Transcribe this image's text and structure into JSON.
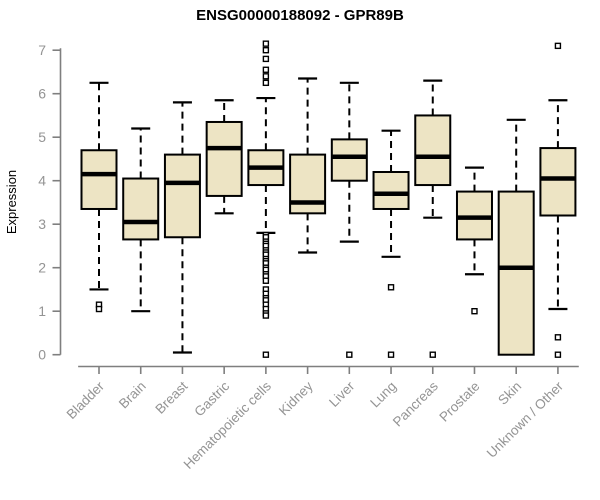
{
  "chart_data": {
    "type": "box",
    "title": "ENSG00000188092 - GPR89B",
    "ylabel": "Expression",
    "xlabel": "",
    "ylim": [
      0,
      7
    ],
    "yticks": [
      0,
      1,
      2,
      3,
      4,
      5,
      6,
      7
    ],
    "grid": false,
    "legend": "none",
    "categories": [
      "Bladder",
      "Brain",
      "Breast",
      "Gastric",
      "Hematopoietic cells",
      "Kidney",
      "Liver",
      "Lung",
      "Pancreas",
      "Prostate",
      "Skin",
      "Unknown / Other"
    ],
    "boxes": [
      {
        "category": "Bladder",
        "whisker_low": 1.5,
        "q1": 3.35,
        "median": 4.15,
        "q3": 4.7,
        "whisker_high": 6.25,
        "outliers": [
          1.15,
          1.05
        ]
      },
      {
        "category": "Brain",
        "whisker_low": 1.0,
        "q1": 2.65,
        "median": 3.05,
        "q3": 4.05,
        "whisker_high": 5.2,
        "outliers": []
      },
      {
        "category": "Breast",
        "whisker_low": 0.05,
        "q1": 2.7,
        "median": 3.95,
        "q3": 4.6,
        "whisker_high": 5.8,
        "outliers": []
      },
      {
        "category": "Gastric",
        "whisker_low": 3.25,
        "q1": 3.65,
        "median": 4.75,
        "q3": 5.35,
        "whisker_high": 5.85,
        "outliers": []
      },
      {
        "category": "Hematopoietic cells",
        "whisker_low": 2.8,
        "q1": 3.9,
        "median": 4.3,
        "q3": 4.7,
        "whisker_high": 5.9,
        "outliers": [
          7.15,
          7.0,
          6.8,
          6.55,
          6.4,
          6.25,
          2.75,
          2.7,
          2.6,
          2.55,
          2.5,
          2.4,
          2.35,
          2.3,
          2.2,
          2.15,
          2.1,
          2.0,
          1.95,
          1.85,
          1.8,
          1.7,
          1.5,
          1.4,
          1.3,
          1.25,
          1.15,
          1.05,
          0.95,
          0.9,
          0.0
        ]
      },
      {
        "category": "Kidney",
        "whisker_low": 2.35,
        "q1": 3.25,
        "median": 3.5,
        "q3": 4.6,
        "whisker_high": 6.35,
        "outliers": []
      },
      {
        "category": "Liver",
        "whisker_low": 2.6,
        "q1": 4.0,
        "median": 4.55,
        "q3": 4.95,
        "whisker_high": 6.25,
        "outliers": [
          0.0
        ]
      },
      {
        "category": "Lung",
        "whisker_low": 2.25,
        "q1": 3.35,
        "median": 3.7,
        "q3": 4.2,
        "whisker_high": 5.15,
        "outliers": [
          1.55,
          0.0
        ]
      },
      {
        "category": "Pancreas",
        "whisker_low": 3.15,
        "q1": 3.9,
        "median": 4.55,
        "q3": 5.5,
        "whisker_high": 6.3,
        "outliers": [
          0.0
        ]
      },
      {
        "category": "Prostate",
        "whisker_low": 1.85,
        "q1": 2.65,
        "median": 3.15,
        "q3": 3.75,
        "whisker_high": 4.3,
        "outliers": [
          1.0
        ]
      },
      {
        "category": "Skin",
        "whisker_low": 0.0,
        "q1": 0.0,
        "median": 2.0,
        "q3": 3.75,
        "whisker_high": 5.4,
        "outliers": []
      },
      {
        "category": "Unknown / Other",
        "whisker_low": 1.05,
        "q1": 3.2,
        "median": 4.05,
        "q3": 4.75,
        "whisker_high": 5.85,
        "outliers": [
          7.1,
          0.4,
          0.0
        ]
      }
    ],
    "colors": {
      "box_fill": "#EDE4C4",
      "box_border": "#000000",
      "median": "#000000",
      "whisker": "#000000",
      "outlier_fill": "#FFFFFF",
      "axis_line": "#7F7F7F",
      "axis_text": "#949494",
      "title_text": "#000000",
      "background": "#FFFFFF"
    }
  }
}
